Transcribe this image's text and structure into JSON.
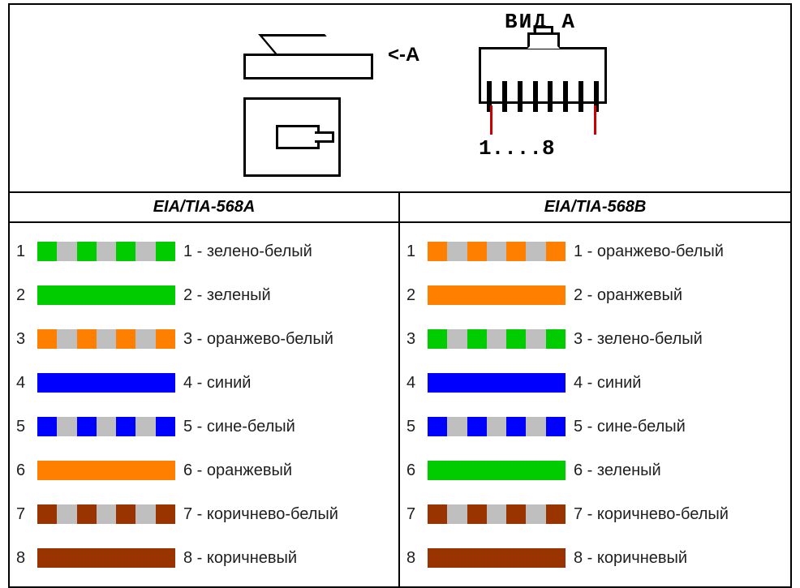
{
  "top": {
    "vidA": "ВИД A",
    "arrow": "<-A",
    "pinLabel": "1....8",
    "tick_color": "#cc0000"
  },
  "stripe_gap_color": "#bfbfbf",
  "colors": {
    "green": "#00cc00",
    "orange": "#ff8000",
    "blue": "#0000ff",
    "brown": "#993300"
  },
  "schemes": {
    "A": {
      "title": "EIA/TIA-568A",
      "wires": [
        {
          "n": 1,
          "label": "1 - зелено-белый",
          "type": "striped",
          "color": "#00cc00"
        },
        {
          "n": 2,
          "label": "2 - зеленый",
          "type": "solid",
          "color": "#00cc00"
        },
        {
          "n": 3,
          "label": "3 - оранжево-белый",
          "type": "striped",
          "color": "#ff8000"
        },
        {
          "n": 4,
          "label": "4 - синий",
          "type": "solid",
          "color": "#0000ff"
        },
        {
          "n": 5,
          "label": "5 - сине-белый",
          "type": "striped",
          "color": "#0000ff"
        },
        {
          "n": 6,
          "label": "6 - оранжевый",
          "type": "solid",
          "color": "#ff8000"
        },
        {
          "n": 7,
          "label": "7 - коричнево-белый",
          "type": "striped",
          "color": "#993300"
        },
        {
          "n": 8,
          "label": "8 - коричневый",
          "type": "solid",
          "color": "#993300"
        }
      ]
    },
    "B": {
      "title": "EIA/TIA-568B",
      "wires": [
        {
          "n": 1,
          "label": "1 - оранжево-белый",
          "type": "striped",
          "color": "#ff8000"
        },
        {
          "n": 2,
          "label": "2 - оранжевый",
          "type": "solid",
          "color": "#ff8000"
        },
        {
          "n": 3,
          "label": "3 - зелено-белый",
          "type": "striped",
          "color": "#00cc00"
        },
        {
          "n": 4,
          "label": "4 - синий",
          "type": "solid",
          "color": "#0000ff"
        },
        {
          "n": 5,
          "label": "5 - сине-белый",
          "type": "striped",
          "color": "#0000ff"
        },
        {
          "n": 6,
          "label": "6 - зеленый",
          "type": "solid",
          "color": "#00cc00"
        },
        {
          "n": 7,
          "label": "7 - коричнево-белый",
          "type": "striped",
          "color": "#993300"
        },
        {
          "n": 8,
          "label": "8 - коричневый",
          "type": "solid",
          "color": "#993300"
        }
      ]
    }
  }
}
